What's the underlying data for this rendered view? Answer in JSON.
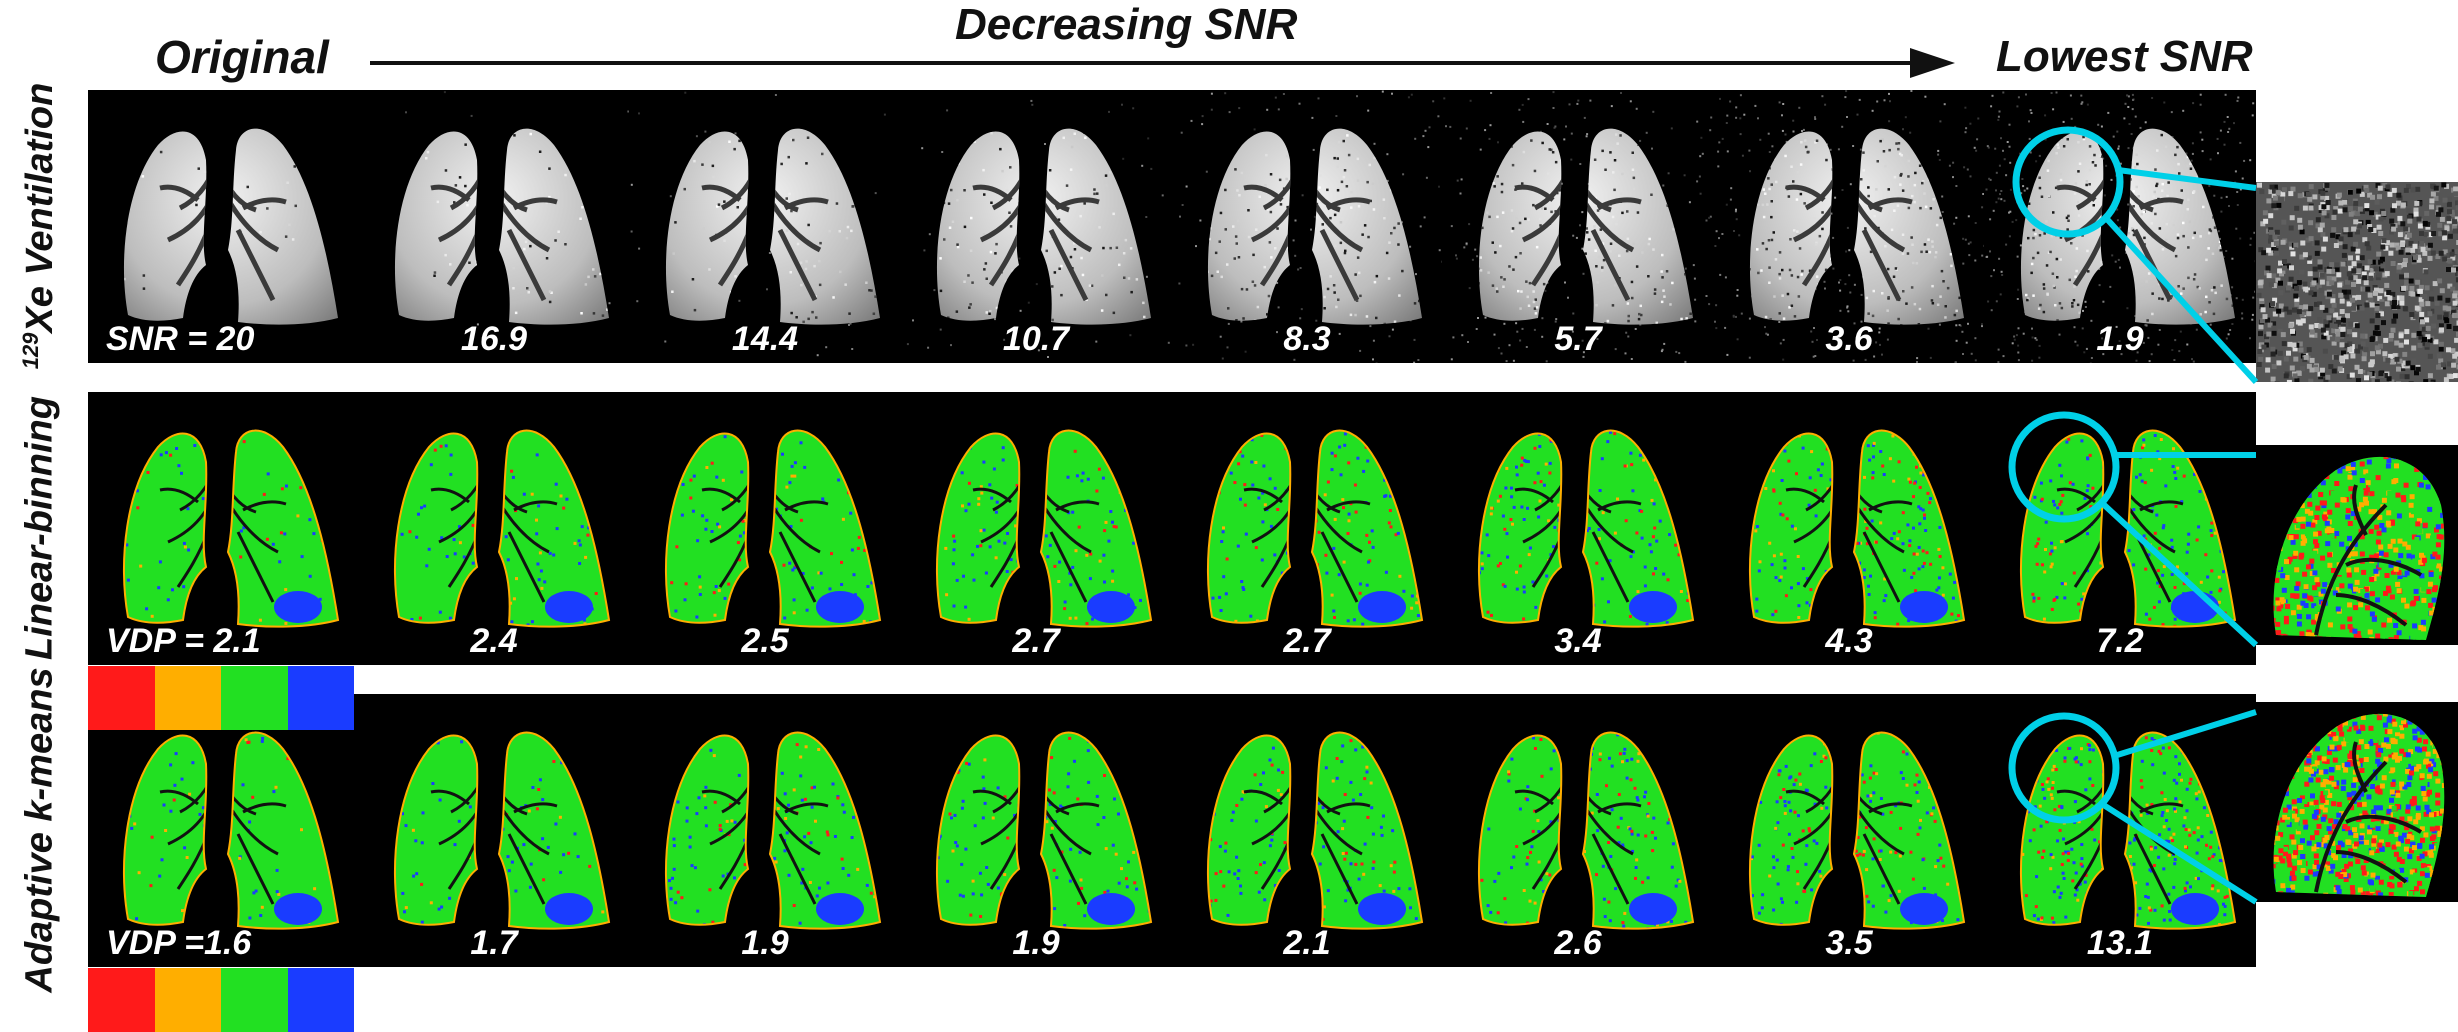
{
  "header": {
    "original": "Original",
    "decreasing": "Decreasing SNR",
    "lowest": "Lowest SNR"
  },
  "rows": [
    {
      "label_sup": "129",
      "label": "Xe Ventilation",
      "kind": "ventilation",
      "values": [
        "SNR = 20",
        "16.9",
        "14.4",
        "10.7",
        "8.3",
        "5.7",
        "3.6",
        "1.9"
      ]
    },
    {
      "label": "Linear-binning",
      "kind": "map",
      "values": [
        "VDP = 2.1",
        "2.4",
        "2.5",
        "2.7",
        "2.7",
        "3.4",
        "4.3",
        "7.2"
      ]
    },
    {
      "label": "Adaptive k-means",
      "kind": "map",
      "values": [
        "VDP =1.6",
        "1.7",
        "1.9",
        "1.9",
        "2.1",
        "2.6",
        "3.5",
        "13.1"
      ]
    }
  ],
  "colorbar": [
    "#ff1a1a",
    "#ffae00",
    "#22e022",
    "#1a3cff"
  ],
  "highlight_color": "#00d0e8",
  "icons": [
    "right-arrow-icon",
    "zoom-circle-icon"
  ]
}
